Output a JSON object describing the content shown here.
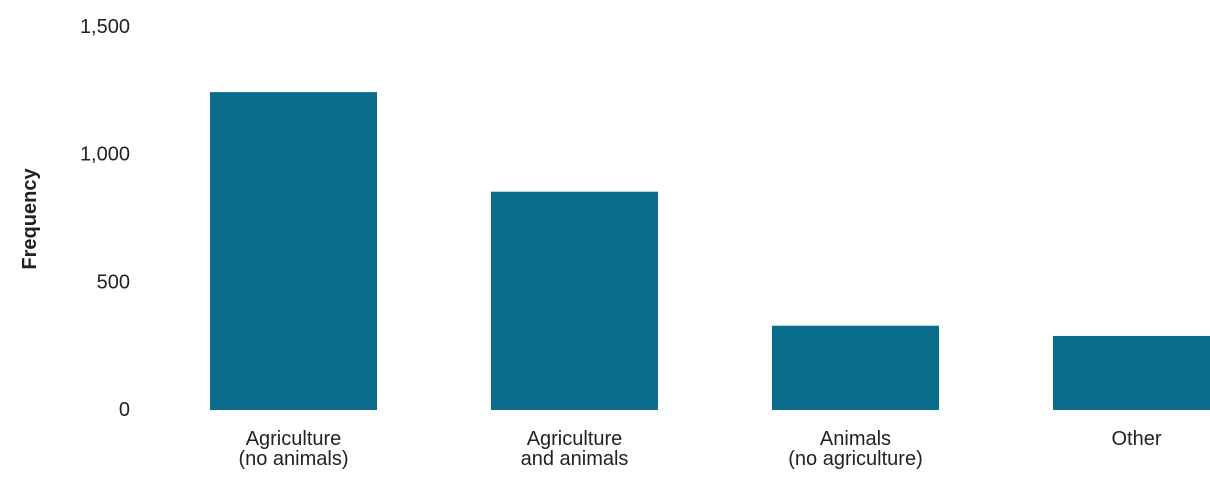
{
  "chart_data": {
    "type": "bar",
    "categories": [
      [
        "Agriculture",
        "(no animals)"
      ],
      [
        "Agriculture",
        "and animals"
      ],
      [
        "Animals",
        "(no agriculture)"
      ],
      [
        "Other"
      ]
    ],
    "values": [
      1245,
      855,
      330,
      290
    ],
    "title": "",
    "xlabel": "",
    "ylabel": "Frequency",
    "ylim": [
      0,
      1500
    ],
    "yticks": [
      0,
      500,
      1000,
      1500
    ],
    "ytick_labels": [
      "0",
      "500",
      "1,000",
      "1,500"
    ],
    "grid": false,
    "legend": "none",
    "bar_color": "#0a6d8c"
  }
}
